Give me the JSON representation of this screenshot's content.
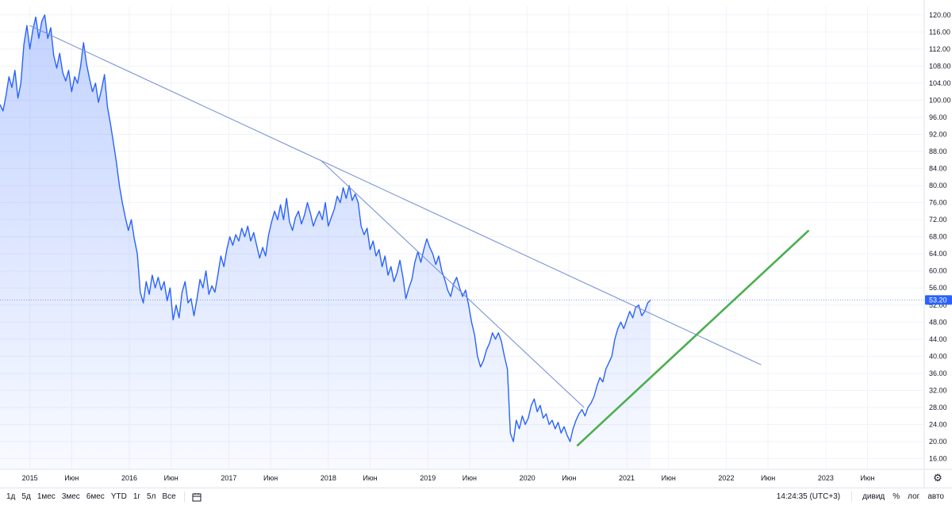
{
  "chart_data": {
    "type": "area",
    "title": "",
    "xlabel": "",
    "ylabel": "",
    "x_tick_labels": [
      "2015",
      "Июн",
      "2016",
      "Июн",
      "2017",
      "Июн",
      "2018",
      "Июн",
      "2019",
      "Июн",
      "2020",
      "Июн",
      "2021",
      "Июн",
      "2022",
      "Июн",
      "2023",
      "Июн"
    ],
    "x_tick_years": [
      2015.0,
      2015.42,
      2016.0,
      2016.42,
      2017.0,
      2017.42,
      2018.0,
      2018.42,
      2019.0,
      2019.42,
      2020.0,
      2020.42,
      2021.0,
      2021.42,
      2022.0,
      2022.42,
      2023.0,
      2023.42
    ],
    "xlim": [
      2014.7,
      2023.99
    ],
    "y_tick_labels": [
      "120.00",
      "116.00",
      "112.00",
      "108.00",
      "104.00",
      "100.00",
      "96.00",
      "92.00",
      "88.00",
      "84.00",
      "80.00",
      "76.00",
      "72.00",
      "68.00",
      "64.00",
      "60.00",
      "56.00",
      "52.00",
      "48.00",
      "44.00",
      "40.00",
      "36.00",
      "32.00",
      "28.00",
      "24.00",
      "20.00",
      "16.00"
    ],
    "ylim": [
      13.5,
      122.0
    ],
    "grid": true,
    "current_price": 53.2,
    "current_price_label": "53.20",
    "series": [
      {
        "color": "#2962ff",
        "points": [
          [
            2014.7,
            99.0
          ],
          [
            2014.73,
            97.5
          ],
          [
            2014.76,
            101.0
          ],
          [
            2014.79,
            105.5
          ],
          [
            2014.82,
            103.0
          ],
          [
            2014.85,
            107.0
          ],
          [
            2014.88,
            100.5
          ],
          [
            2014.91,
            104.0
          ],
          [
            2014.94,
            113.0
          ],
          [
            2014.97,
            117.5
          ],
          [
            2015.0,
            112.0
          ],
          [
            2015.03,
            116.5
          ],
          [
            2015.06,
            119.5
          ],
          [
            2015.09,
            114.5
          ],
          [
            2015.12,
            118.5
          ],
          [
            2015.15,
            120.0
          ],
          [
            2015.18,
            114.5
          ],
          [
            2015.21,
            117.0
          ],
          [
            2015.24,
            110.5
          ],
          [
            2015.27,
            107.5
          ],
          [
            2015.3,
            111.0
          ],
          [
            2015.33,
            106.5
          ],
          [
            2015.36,
            104.5
          ],
          [
            2015.39,
            107.0
          ],
          [
            2015.42,
            102.0
          ],
          [
            2015.45,
            105.5
          ],
          [
            2015.48,
            104.0
          ],
          [
            2015.51,
            108.0
          ],
          [
            2015.54,
            113.5
          ],
          [
            2015.57,
            108.5
          ],
          [
            2015.6,
            105.0
          ],
          [
            2015.63,
            102.0
          ],
          [
            2015.66,
            104.0
          ],
          [
            2015.69,
            99.5
          ],
          [
            2015.72,
            102.5
          ],
          [
            2015.75,
            106.0
          ],
          [
            2015.78,
            98.5
          ],
          [
            2015.81,
            94.5
          ],
          [
            2015.84,
            90.0
          ],
          [
            2015.87,
            85.5
          ],
          [
            2015.9,
            80.0
          ],
          [
            2015.93,
            76.0
          ],
          [
            2015.96,
            72.5
          ],
          [
            2015.99,
            69.5
          ],
          [
            2016.02,
            72.0
          ],
          [
            2016.05,
            67.5
          ],
          [
            2016.08,
            64.0
          ],
          [
            2016.11,
            55.0
          ],
          [
            2016.14,
            52.5
          ],
          [
            2016.17,
            57.5
          ],
          [
            2016.2,
            54.5
          ],
          [
            2016.23,
            59.0
          ],
          [
            2016.26,
            56.0
          ],
          [
            2016.29,
            58.5
          ],
          [
            2016.32,
            55.5
          ],
          [
            2016.35,
            57.5
          ],
          [
            2016.38,
            53.0
          ],
          [
            2016.41,
            56.0
          ],
          [
            2016.44,
            48.5
          ],
          [
            2016.47,
            52.0
          ],
          [
            2016.5,
            49.0
          ],
          [
            2016.53,
            55.0
          ],
          [
            2016.56,
            57.5
          ],
          [
            2016.59,
            52.5
          ],
          [
            2016.62,
            53.5
          ],
          [
            2016.65,
            49.5
          ],
          [
            2016.68,
            53.5
          ],
          [
            2016.71,
            58.0
          ],
          [
            2016.74,
            56.0
          ],
          [
            2016.77,
            60.0
          ],
          [
            2016.8,
            54.5
          ],
          [
            2016.83,
            56.5
          ],
          [
            2016.86,
            55.0
          ],
          [
            2016.89,
            59.0
          ],
          [
            2016.92,
            63.5
          ],
          [
            2016.95,
            61.0
          ],
          [
            2016.98,
            65.0
          ],
          [
            2017.01,
            68.0
          ],
          [
            2017.04,
            66.0
          ],
          [
            2017.07,
            68.5
          ],
          [
            2017.1,
            67.0
          ],
          [
            2017.13,
            70.0
          ],
          [
            2017.16,
            68.0
          ],
          [
            2017.19,
            70.5
          ],
          [
            2017.22,
            67.0
          ],
          [
            2017.25,
            69.0
          ],
          [
            2017.28,
            66.0
          ],
          [
            2017.31,
            63.0
          ],
          [
            2017.34,
            65.5
          ],
          [
            2017.37,
            63.5
          ],
          [
            2017.4,
            68.5
          ],
          [
            2017.43,
            71.5
          ],
          [
            2017.46,
            74.0
          ],
          [
            2017.49,
            72.0
          ],
          [
            2017.52,
            75.5
          ],
          [
            2017.55,
            72.0
          ],
          [
            2017.58,
            77.0
          ],
          [
            2017.61,
            71.5
          ],
          [
            2017.64,
            69.5
          ],
          [
            2017.67,
            72.5
          ],
          [
            2017.7,
            74.0
          ],
          [
            2017.73,
            71.0
          ],
          [
            2017.76,
            73.0
          ],
          [
            2017.79,
            76.0
          ],
          [
            2017.82,
            73.5
          ],
          [
            2017.85,
            70.5
          ],
          [
            2017.88,
            72.5
          ],
          [
            2017.91,
            74.0
          ],
          [
            2017.94,
            72.0
          ],
          [
            2017.97,
            76.0
          ],
          [
            2018.0,
            70.5
          ],
          [
            2018.03,
            72.5
          ],
          [
            2018.06,
            74.5
          ],
          [
            2018.09,
            77.5
          ],
          [
            2018.12,
            76.0
          ],
          [
            2018.15,
            79.5
          ],
          [
            2018.18,
            77.0
          ],
          [
            2018.21,
            80.0
          ],
          [
            2018.24,
            76.5
          ],
          [
            2018.27,
            78.0
          ],
          [
            2018.3,
            76.0
          ],
          [
            2018.33,
            70.5
          ],
          [
            2018.36,
            68.5
          ],
          [
            2018.39,
            70.0
          ],
          [
            2018.42,
            65.0
          ],
          [
            2018.45,
            67.0
          ],
          [
            2018.48,
            63.5
          ],
          [
            2018.51,
            65.0
          ],
          [
            2018.54,
            61.0
          ],
          [
            2018.57,
            63.5
          ],
          [
            2018.6,
            59.0
          ],
          [
            2018.63,
            61.0
          ],
          [
            2018.66,
            57.5
          ],
          [
            2018.69,
            59.5
          ],
          [
            2018.72,
            62.5
          ],
          [
            2018.75,
            58.5
          ],
          [
            2018.78,
            53.5
          ],
          [
            2018.81,
            56.0
          ],
          [
            2018.84,
            58.0
          ],
          [
            2018.87,
            62.0
          ],
          [
            2018.9,
            64.5
          ],
          [
            2018.93,
            62.0
          ],
          [
            2018.96,
            65.0
          ],
          [
            2018.99,
            67.5
          ],
          [
            2019.02,
            65.5
          ],
          [
            2019.05,
            64.0
          ],
          [
            2019.08,
            61.5
          ],
          [
            2019.11,
            63.5
          ],
          [
            2019.14,
            60.0
          ],
          [
            2019.17,
            58.0
          ],
          [
            2019.2,
            55.5
          ],
          [
            2019.23,
            54.0
          ],
          [
            2019.26,
            57.0
          ],
          [
            2019.29,
            58.5
          ],
          [
            2019.32,
            56.0
          ],
          [
            2019.35,
            54.0
          ],
          [
            2019.38,
            55.5
          ],
          [
            2019.41,
            52.0
          ],
          [
            2019.44,
            48.0
          ],
          [
            2019.47,
            45.0
          ],
          [
            2019.5,
            40.0
          ],
          [
            2019.53,
            37.5
          ],
          [
            2019.56,
            39.0
          ],
          [
            2019.59,
            41.5
          ],
          [
            2019.62,
            43.0
          ],
          [
            2019.65,
            45.5
          ],
          [
            2019.68,
            44.0
          ],
          [
            2019.71,
            45.5
          ],
          [
            2019.74,
            43.5
          ],
          [
            2019.77,
            40.0
          ],
          [
            2019.8,
            37.0
          ],
          [
            2019.83,
            22.0
          ],
          [
            2019.86,
            20.0
          ],
          [
            2019.89,
            25.0
          ],
          [
            2019.92,
            23.0
          ],
          [
            2019.95,
            26.0
          ],
          [
            2019.98,
            24.0
          ],
          [
            2020.01,
            25.5
          ],
          [
            2020.04,
            28.5
          ],
          [
            2020.07,
            30.0
          ],
          [
            2020.1,
            27.0
          ],
          [
            2020.13,
            28.5
          ],
          [
            2020.16,
            25.5
          ],
          [
            2020.19,
            26.5
          ],
          [
            2020.22,
            24.0
          ],
          [
            2020.25,
            25.0
          ],
          [
            2020.28,
            23.0
          ],
          [
            2020.31,
            24.5
          ],
          [
            2020.34,
            22.0
          ],
          [
            2020.37,
            23.5
          ],
          [
            2020.4,
            21.5
          ],
          [
            2020.43,
            20.0
          ],
          [
            2020.46,
            23.0
          ],
          [
            2020.49,
            25.0
          ],
          [
            2020.52,
            26.5
          ],
          [
            2020.55,
            27.5
          ],
          [
            2020.58,
            26.0
          ],
          [
            2020.61,
            28.0
          ],
          [
            2020.64,
            29.0
          ],
          [
            2020.67,
            30.5
          ],
          [
            2020.7,
            33.0
          ],
          [
            2020.73,
            35.0
          ],
          [
            2020.76,
            34.0
          ],
          [
            2020.79,
            37.0
          ],
          [
            2020.82,
            38.5
          ],
          [
            2020.85,
            40.0
          ],
          [
            2020.88,
            44.0
          ],
          [
            2020.91,
            46.5
          ],
          [
            2020.94,
            48.0
          ],
          [
            2020.97,
            46.5
          ],
          [
            2021.0,
            48.5
          ],
          [
            2021.03,
            50.5
          ],
          [
            2021.06,
            49.0
          ],
          [
            2021.09,
            51.5
          ],
          [
            2021.12,
            52.0
          ],
          [
            2021.15,
            49.5
          ],
          [
            2021.18,
            50.5
          ],
          [
            2021.21,
            52.5
          ],
          [
            2021.24,
            53.2
          ]
        ]
      }
    ],
    "trendlines": [
      {
        "color": "#7b93d6",
        "points": [
          [
            2015.0,
            117.5
          ],
          [
            2022.35,
            38.0
          ]
        ]
      },
      {
        "color": "#7b93d6",
        "points": [
          [
            2017.92,
            86.0
          ],
          [
            2020.57,
            28.0
          ]
        ]
      },
      {
        "color": "#4caf50",
        "points": [
          [
            2020.5,
            19.0
          ],
          [
            2022.83,
            69.5
          ]
        ]
      }
    ]
  },
  "toolbar": {
    "ranges": [
      "1д",
      "5д",
      "1мес",
      "3мес",
      "6мес",
      "YTD",
      "1г",
      "5л",
      "Все"
    ],
    "date_range_icon": "calendar-range-icon",
    "clock": "14:24:35 (UTC+3)",
    "options": [
      "дивид",
      "%",
      "лог",
      "авто"
    ]
  },
  "settings_icon": "gear-icon",
  "colors": {
    "line": "#2962ff",
    "fill": "#2962ff",
    "grid": "#f0f3fa",
    "trend_blue": "#7b93d6",
    "trend_green": "#4caf50",
    "price_tag": "#2962ff"
  }
}
